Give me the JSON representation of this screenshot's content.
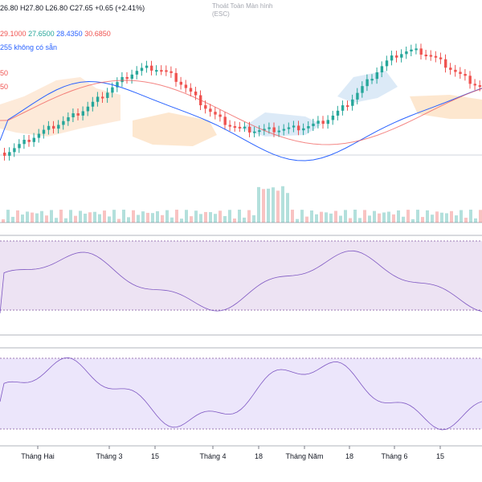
{
  "legend": {
    "ohlc": "26.80  H27.80  L26.80  C27.65  +0.65 (+2.41%)",
    "ichimoku": [
      "29.1000",
      "27.6500",
      "28.4350",
      "30.6850"
    ],
    "unavailable": "255  không có sẵn",
    "partial_values": [
      "50",
      "50"
    ]
  },
  "escape_hint": {
    "line1": "Thoát Toàn Màn hình",
    "line2": "(ESC)"
  },
  "xaxis": [
    "Tháng Hai",
    "Tháng 3",
    "15",
    "Tháng 4",
    "18",
    "Tháng Năm",
    "18",
    "Tháng 6",
    "15"
  ],
  "colors": {
    "up": "#26a69a",
    "down": "#ef5350",
    "rsi_band": "#ede3f3",
    "stoch_band": "#ece6fb"
  }
}
